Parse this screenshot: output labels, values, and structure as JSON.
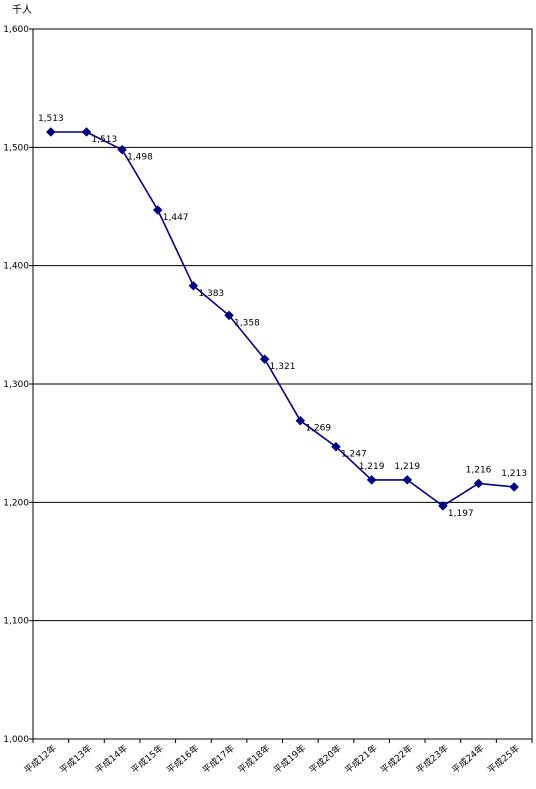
{
  "chart_data": {
    "type": "line",
    "unit_label": "千人",
    "categories": [
      "平成12年",
      "平成13年",
      "平成14年",
      "平成15年",
      "平成16年",
      "平成17年",
      "平成18年",
      "平成19年",
      "平成20年",
      "平成21年",
      "平成22年",
      "平成23年",
      "平成24年",
      "平成25年"
    ],
    "series": [
      {
        "values": [
          1513,
          1513,
          1498,
          1447,
          1383,
          1358,
          1321,
          1269,
          1247,
          1219,
          1219,
          1197,
          1216,
          1213
        ],
        "labels": [
          "1,513",
          "1,513",
          "1,498",
          "1,447",
          "1,383",
          "1,358",
          "1,321",
          "1,269",
          "1,247",
          "1,219",
          "1,219",
          "1,197",
          "1,216",
          "1,213"
        ],
        "color": "#000080"
      }
    ],
    "ylim": [
      1000,
      1600
    ],
    "yticks": [
      1000,
      1100,
      1200,
      1300,
      1400,
      1500,
      1600
    ],
    "ytick_labels": [
      "1,000",
      "1,100",
      "1,200",
      "1,300",
      "1,400",
      "1,500",
      "1,600"
    ],
    "grid": true
  }
}
